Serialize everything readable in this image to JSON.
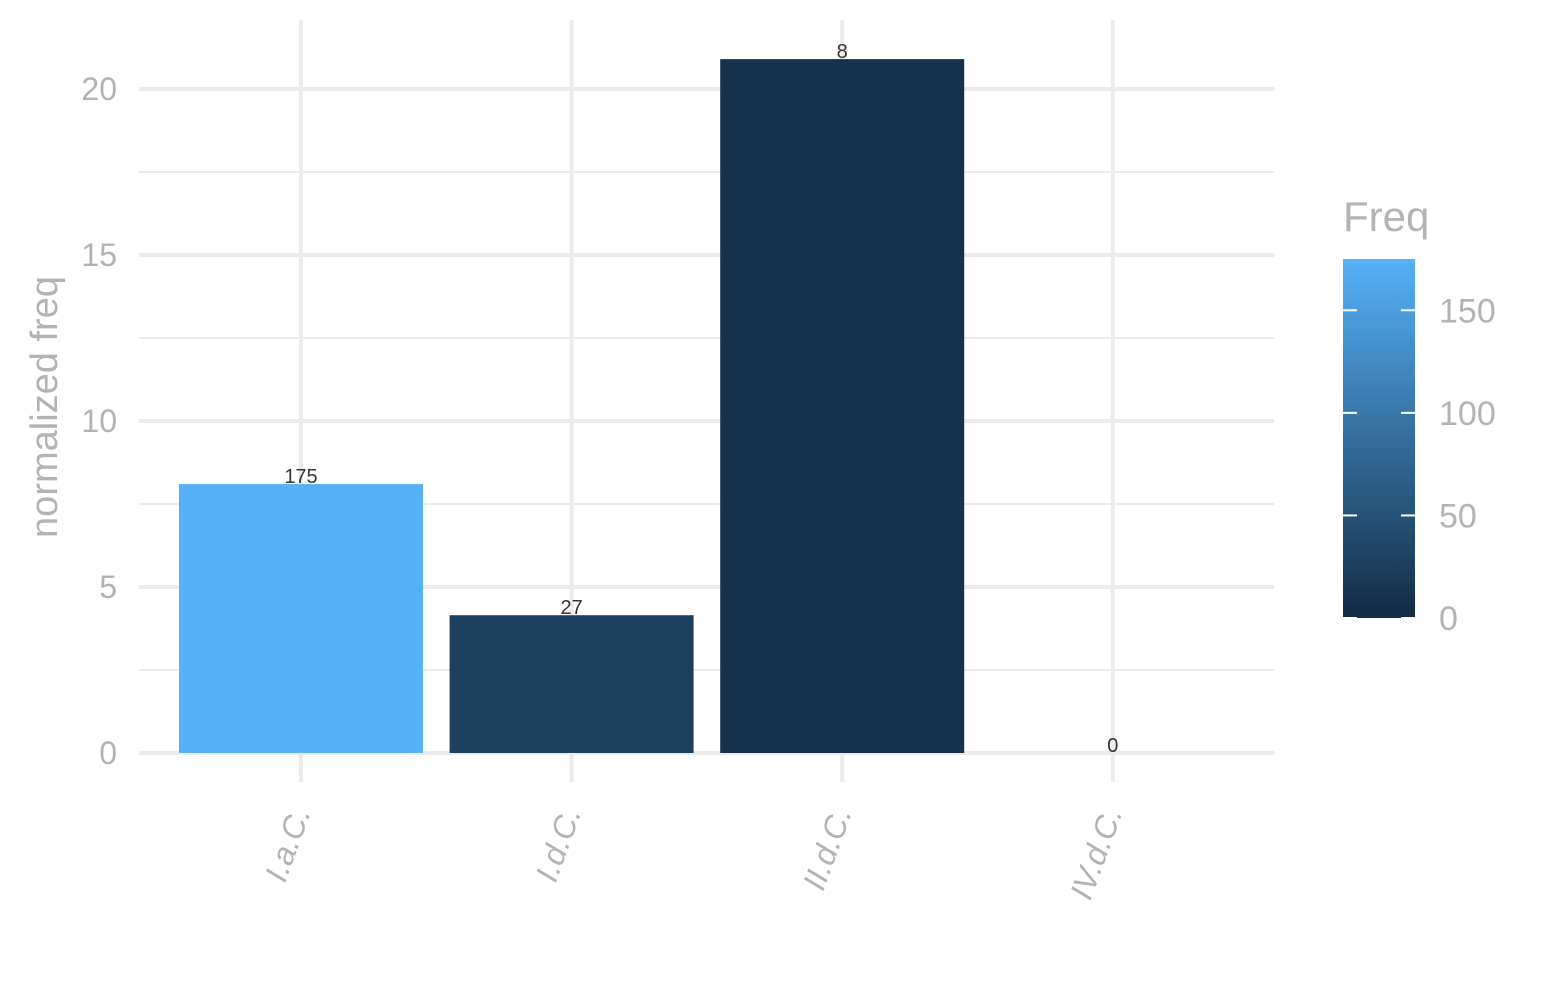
{
  "chart_data": {
    "type": "bar",
    "categories": [
      "I.a.C.",
      "I.d.C.",
      "II.d.C.",
      "IV.d.C."
    ],
    "values": [
      8.1,
      4.15,
      20.9,
      0
    ],
    "data_labels": [
      "175",
      "27",
      "8",
      "0"
    ],
    "fill_values": [
      175,
      27,
      8,
      0
    ],
    "title": "",
    "xlabel": "",
    "ylabel": "normalized freq",
    "ylim": [
      0,
      22
    ],
    "yticks": [
      0,
      5,
      10,
      15,
      20
    ],
    "ytick_labels": [
      "0",
      "5",
      "10",
      "15",
      "20"
    ],
    "grid": true,
    "legend": {
      "title": "Freq",
      "placement": "right",
      "type": "colorbar",
      "range": [
        0,
        175
      ],
      "ticks": [
        0,
        50,
        100,
        150
      ],
      "tick_labels": [
        "0",
        "50",
        "100",
        "150"
      ],
      "color_low": "#132b43",
      "color_high": "#56b1f7"
    }
  }
}
